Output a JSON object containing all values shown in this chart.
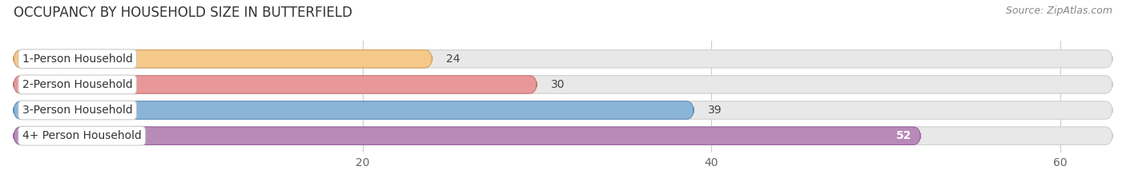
{
  "title": "OCCUPANCY BY HOUSEHOLD SIZE IN BUTTERFIELD",
  "source": "Source: ZipAtlas.com",
  "categories": [
    "1-Person Household",
    "2-Person Household",
    "3-Person Household",
    "4+ Person Household"
  ],
  "values": [
    24,
    30,
    39,
    52
  ],
  "bar_colors": [
    "#f5c98a",
    "#e89898",
    "#8ab4d8",
    "#b88ab8"
  ],
  "bar_edge_colors": [
    "#d4a060",
    "#c87878",
    "#6090b8",
    "#9868a0"
  ],
  "label_colors": [
    "#444444",
    "#444444",
    "#444444",
    "#ffffff"
  ],
  "xlim": [
    0,
    63
  ],
  "xticks": [
    20,
    40,
    60
  ],
  "background_color": "#ffffff",
  "bar_background_color": "#e8e8e8",
  "bar_bg_edge_color": "#d0d0d0",
  "title_fontsize": 12,
  "source_fontsize": 9,
  "label_fontsize": 10,
  "value_fontsize": 10,
  "tick_fontsize": 10,
  "bar_height": 0.7,
  "bar_spacing": 1.0
}
